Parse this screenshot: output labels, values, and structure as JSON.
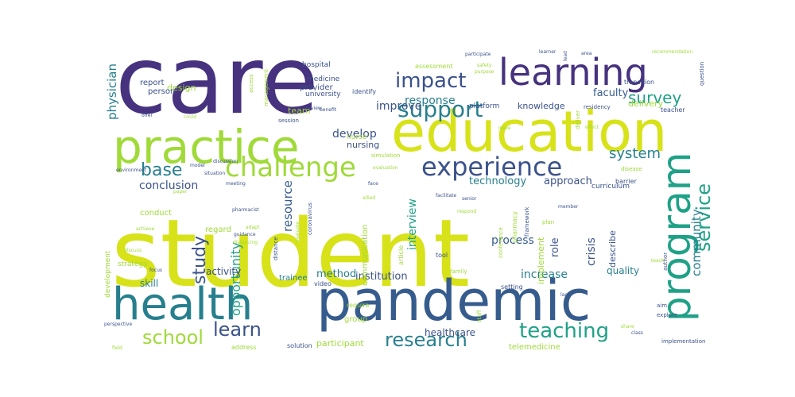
{
  "palette": {
    "purple": "#46327e",
    "indigo": "#3b528b",
    "blue": "#365c8d",
    "teal": "#277f8e",
    "green": "#1fa187",
    "lightgreen": "#4ac16d",
    "lime": "#a0da39",
    "yellow": "#d7e219"
  },
  "words": [
    {
      "text": "student",
      "color": "yellow"
    },
    {
      "text": "care",
      "color": "purple"
    },
    {
      "text": "pandemic",
      "color": "blue"
    },
    {
      "text": "education",
      "color": "yellow"
    },
    {
      "text": "practice",
      "color": "lime"
    },
    {
      "text": "health",
      "color": "teal"
    },
    {
      "text": "learning",
      "color": "purple"
    },
    {
      "text": "program",
      "color": "green"
    },
    {
      "text": "challenge",
      "color": "lime"
    },
    {
      "text": "experience",
      "color": "indigo"
    },
    {
      "text": "teaching",
      "color": "green"
    },
    {
      "text": "support",
      "color": "teal"
    },
    {
      "text": "impact",
      "color": "indigo"
    },
    {
      "text": "research",
      "color": "teal"
    },
    {
      "text": "service",
      "color": "green"
    },
    {
      "text": "school",
      "color": "lime"
    },
    {
      "text": "base",
      "color": "teal"
    },
    {
      "text": "learn",
      "color": "indigo"
    },
    {
      "text": "study",
      "color": "indigo"
    },
    {
      "text": "survey",
      "color": "green"
    },
    {
      "text": "system",
      "color": "teal"
    },
    {
      "text": "response",
      "color": "teal"
    },
    {
      "text": "community",
      "color": "teal"
    },
    {
      "text": "opportunity",
      "color": "green"
    },
    {
      "text": "resource",
      "color": "blue"
    },
    {
      "text": "conclusion",
      "color": "indigo"
    },
    {
      "text": "develop",
      "color": "indigo"
    },
    {
      "text": "improve",
      "color": "indigo"
    },
    {
      "text": "faculty",
      "color": "blue"
    },
    {
      "text": "technology",
      "color": "teal"
    },
    {
      "text": "approach",
      "color": "indigo"
    },
    {
      "text": "increase",
      "color": "teal"
    },
    {
      "text": "process",
      "color": "blue"
    },
    {
      "text": "physician",
      "color": "teal"
    },
    {
      "text": "interview",
      "color": "green"
    },
    {
      "text": "skill",
      "color": "teal"
    },
    {
      "text": "activity",
      "color": "indigo"
    },
    {
      "text": "quality",
      "color": "teal"
    },
    {
      "text": "method",
      "color": "teal"
    },
    {
      "text": "institution",
      "color": "indigo"
    },
    {
      "text": "healthcare",
      "color": "indigo"
    },
    {
      "text": "participant",
      "color": "lime"
    },
    {
      "text": "crisis",
      "color": "indigo"
    },
    {
      "text": "role",
      "color": "indigo"
    },
    {
      "text": "knowledge",
      "color": "indigo"
    },
    {
      "text": "delivery",
      "color": "lime"
    },
    {
      "text": "nursing",
      "color": "indigo"
    },
    {
      "text": "team",
      "color": "lime"
    },
    {
      "text": "design",
      "color": "lime"
    },
    {
      "text": "report",
      "color": "indigo"
    },
    {
      "text": "person",
      "color": "indigo"
    },
    {
      "text": "provider",
      "color": "indigo"
    },
    {
      "text": "development",
      "color": "lime"
    },
    {
      "text": "implement",
      "color": "lime"
    },
    {
      "text": "describe",
      "color": "indigo"
    },
    {
      "text": "communication",
      "color": "lime"
    },
    {
      "text": "trainee",
      "color": "teal"
    },
    {
      "text": "telemedicine",
      "color": "lime"
    },
    {
      "text": "group",
      "color": "lime"
    },
    {
      "text": "strategy",
      "color": "lime"
    },
    {
      "text": "conduct",
      "color": "lime"
    },
    {
      "text": "regard",
      "color": "lime"
    },
    {
      "text": "platform",
      "color": "indigo"
    },
    {
      "text": "nurse",
      "color": "lime"
    },
    {
      "text": "university",
      "color": "indigo"
    },
    {
      "text": "hospital",
      "color": "indigo"
    },
    {
      "text": "medicine",
      "color": "indigo"
    },
    {
      "text": "identify",
      "color": "indigo"
    },
    {
      "text": "curriculum",
      "color": "indigo"
    },
    {
      "text": "assessment",
      "color": "lime"
    },
    {
      "text": "transition",
      "color": "indigo"
    },
    {
      "text": "teacher",
      "color": "indigo"
    },
    {
      "text": "article",
      "color": "lime"
    },
    {
      "text": "tool",
      "color": "indigo"
    },
    {
      "text": "video",
      "color": "indigo"
    },
    {
      "text": "solution",
      "color": "indigo"
    },
    {
      "text": "address",
      "color": "lime"
    },
    {
      "text": "require",
      "color": "lime"
    },
    {
      "text": "implementation",
      "color": "indigo"
    },
    {
      "text": "author",
      "color": "indigo"
    },
    {
      "text": "aim",
      "color": "indigo"
    },
    {
      "text": "explore",
      "color": "indigo"
    },
    {
      "text": "share",
      "color": "lime"
    },
    {
      "text": "field",
      "color": "lime"
    },
    {
      "text": "perspective",
      "color": "indigo"
    },
    {
      "text": "staff",
      "color": "lime"
    },
    {
      "text": "setting",
      "color": "indigo"
    },
    {
      "text": "family",
      "color": "lime"
    },
    {
      "text": "conference",
      "color": "lime"
    },
    {
      "text": "framework",
      "color": "indigo"
    },
    {
      "text": "plan",
      "color": "lime"
    },
    {
      "text": "pharmacy",
      "color": "lime"
    },
    {
      "text": "simulation",
      "color": "lime"
    },
    {
      "text": "session",
      "color": "indigo"
    },
    {
      "text": "covid",
      "color": "lime"
    },
    {
      "text": "offer",
      "color": "indigo"
    },
    {
      "text": "benefit",
      "color": "indigo"
    },
    {
      "text": "review",
      "color": "indigo"
    },
    {
      "text": "issue",
      "color": "lime"
    },
    {
      "text": "effect",
      "color": "lime"
    },
    {
      "text": "barrier",
      "color": "indigo"
    },
    {
      "text": "disease",
      "color": "lime"
    },
    {
      "text": "residency",
      "color": "indigo"
    },
    {
      "text": "deliver",
      "color": "lime"
    },
    {
      "text": "management",
      "color": "lime"
    },
    {
      "text": "access",
      "color": "lime"
    },
    {
      "text": "safety",
      "color": "lime"
    },
    {
      "text": "purpose",
      "color": "lime"
    },
    {
      "text": "participate",
      "color": "indigo"
    },
    {
      "text": "learner",
      "color": "indigo"
    },
    {
      "text": "lead",
      "color": "indigo"
    },
    {
      "text": "recommendation",
      "color": "lime"
    },
    {
      "text": "question",
      "color": "indigo"
    },
    {
      "text": "coronavirus",
      "color": "indigo"
    },
    {
      "text": "distance",
      "color": "indigo"
    },
    {
      "text": "guidance",
      "color": "indigo"
    },
    {
      "text": "distancing",
      "color": "lime"
    },
    {
      "text": "evaluate",
      "color": "lime"
    },
    {
      "text": "adapt",
      "color": "lime"
    },
    {
      "text": "discuss",
      "color": "lime"
    },
    {
      "text": "focus",
      "color": "indigo"
    },
    {
      "text": "environment",
      "color": "indigo"
    },
    {
      "text": "meeting",
      "color": "indigo"
    },
    {
      "text": "pharmacist",
      "color": "indigo"
    },
    {
      "text": "paper",
      "color": "lime"
    },
    {
      "text": "situation",
      "color": "indigo"
    },
    {
      "text": "discussion",
      "color": "indigo"
    },
    {
      "text": "model",
      "color": "indigo"
    },
    {
      "text": "allied",
      "color": "lime"
    },
    {
      "text": "evaluation",
      "color": "lime"
    },
    {
      "text": "face",
      "color": "indigo"
    },
    {
      "text": "facilitate",
      "color": "indigo"
    },
    {
      "text": "senior",
      "color": "indigo"
    },
    {
      "text": "respond",
      "color": "lime"
    },
    {
      "text": "teach",
      "color": "lime"
    },
    {
      "text": "class",
      "color": "indigo"
    },
    {
      "text": "lack",
      "color": "indigo"
    },
    {
      "text": "member",
      "color": "indigo"
    },
    {
      "text": "area",
      "color": "indigo"
    },
    {
      "text": "achieve",
      "color": "lime"
    }
  ]
}
